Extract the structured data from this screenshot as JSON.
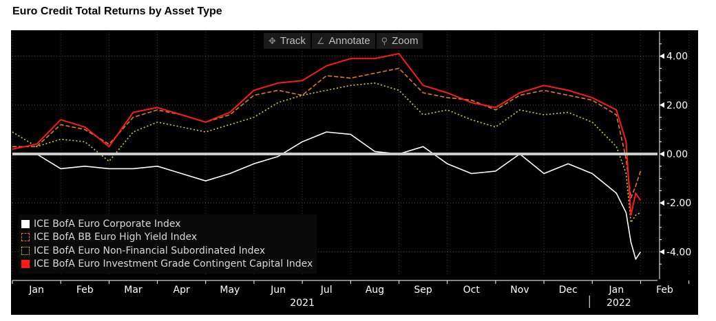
{
  "title": "Euro Credit Total Returns by Asset Type",
  "toolbar": {
    "track": {
      "label": "Track",
      "icon": "crosshair-icon"
    },
    "annotate": {
      "label": "Annotate",
      "icon": "pencil-icon"
    },
    "zoom": {
      "label": "Zoom",
      "icon": "magnifier-icon"
    }
  },
  "chart_data": {
    "type": "line",
    "y_ticks": [
      "4.00",
      "2.00",
      "0.00",
      "-2.00",
      "-4.00"
    ],
    "ylim": [
      -5,
      5
    ],
    "month_labels": [
      "Jan",
      "Feb",
      "Mar",
      "Apr",
      "May",
      "Jun",
      "Jul",
      "Aug",
      "Sep",
      "Oct",
      "Nov",
      "Dec",
      "Jan",
      "Feb"
    ],
    "year_labels": [
      "2021",
      "2022"
    ],
    "grid": true,
    "zero_line": true,
    "legend_position": "bottom-left",
    "x": [
      0.0,
      0.5,
      1.0,
      1.5,
      2.0,
      2.5,
      3.0,
      3.5,
      4.0,
      4.5,
      5.0,
      5.5,
      6.0,
      6.5,
      7.0,
      7.5,
      8.0,
      8.5,
      9.0,
      9.5,
      10.0,
      10.5,
      11.0,
      11.5,
      12.0,
      12.5,
      12.7,
      12.8,
      12.9,
      13.0
    ],
    "series": [
      {
        "name": "ICE BofA Euro Corporate Index",
        "color": "#ffffff",
        "style": "solid",
        "values": [
          0.0,
          0.0,
          -0.6,
          -0.5,
          -0.6,
          -0.6,
          -0.5,
          -0.8,
          -1.1,
          -0.8,
          -0.4,
          -0.1,
          0.5,
          0.9,
          0.8,
          0.1,
          0.0,
          0.3,
          -0.4,
          -0.8,
          -0.7,
          0.0,
          -0.8,
          -0.4,
          -0.8,
          -1.6,
          -2.4,
          -3.6,
          -4.3,
          -4.0
        ]
      },
      {
        "name": "ICE BofA BB Euro High Yield Index",
        "color": "#e07a2e",
        "style": "dashed",
        "values": [
          0.3,
          0.3,
          1.2,
          1.0,
          0.4,
          1.5,
          1.8,
          1.6,
          1.3,
          1.6,
          2.4,
          2.6,
          2.4,
          3.2,
          3.1,
          3.3,
          3.5,
          2.5,
          2.3,
          2.2,
          1.8,
          2.4,
          2.6,
          2.4,
          2.2,
          1.6,
          -0.2,
          -1.8,
          -1.3,
          -0.7
        ]
      },
      {
        "name": "ICE BofA Euro Non-Financial Subordinated Index",
        "color": "#d6d62a",
        "style": "dotted",
        "values": [
          0.9,
          0.3,
          0.6,
          0.5,
          -0.3,
          0.9,
          1.3,
          1.1,
          0.9,
          1.2,
          1.5,
          2.1,
          2.4,
          2.6,
          2.8,
          2.9,
          2.6,
          1.6,
          1.8,
          1.4,
          1.1,
          1.8,
          1.6,
          1.7,
          1.3,
          0.3,
          -0.8,
          -2.8,
          -2.5,
          -2.4
        ]
      },
      {
        "name": "ICE BofA Euro Investment Grade Contingent Capital Index",
        "color": "#ff1a1a",
        "style": "solid",
        "values": [
          0.2,
          0.4,
          1.4,
          1.1,
          0.3,
          1.7,
          1.9,
          1.6,
          1.3,
          1.7,
          2.6,
          2.9,
          3.0,
          3.6,
          3.9,
          3.9,
          4.1,
          2.8,
          2.5,
          2.1,
          1.9,
          2.5,
          2.8,
          2.6,
          2.3,
          1.8,
          0.5,
          -2.5,
          -1.6,
          -1.9
        ]
      }
    ]
  }
}
